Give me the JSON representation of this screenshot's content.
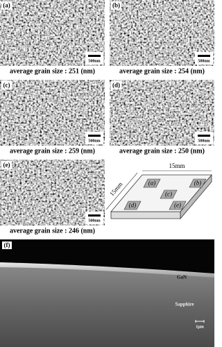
{
  "panels": [
    {
      "label": "(a)",
      "scale_bar": "500nm",
      "caption": "average grain size : 251 (nm)"
    },
    {
      "label": "(b)",
      "scale_bar": "500nm",
      "caption": "average grain size : 254 (nm)"
    },
    {
      "label": "(c)",
      "scale_bar": "500nm",
      "caption": "average grain size : 259 (nm)"
    },
    {
      "label": "(d)",
      "scale_bar": "500nm",
      "caption": "average grain size : 250 (nm)"
    },
    {
      "label": "(e)",
      "scale_bar": "500nm",
      "caption": "average grain size : 246 (nm)"
    }
  ],
  "schematic": {
    "top_label": "15mm",
    "side_label": "15mm",
    "positions": [
      "(a)",
      "(b)",
      "(c)",
      "(d)",
      "(e)"
    ]
  },
  "cross_section": {
    "label": "(f)",
    "layers": [
      "GaN",
      "Sapphire"
    ],
    "scale_bar": "1µm"
  }
}
